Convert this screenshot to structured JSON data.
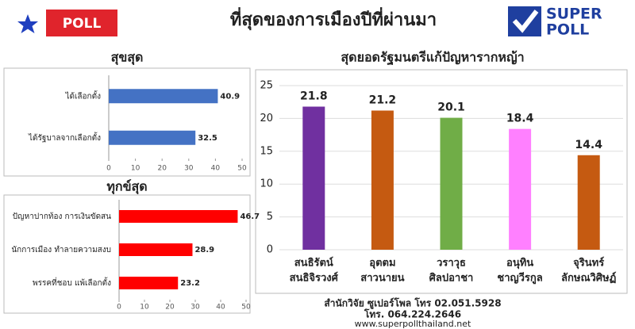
{
  "header": {
    "badge": "POLL",
    "title": "ที่สุดของการเมืองปีที่ผ่านมา",
    "logo_top": "SUPER",
    "logo_bottom": "POLL"
  },
  "chart_data": [
    {
      "type": "barh",
      "title": "สุขสุด",
      "categories": [
        "ได้เลือกตั้ง",
        "ได้รัฐบาลจากเลือกตั้ง"
      ],
      "values": [
        40.9,
        32.5
      ],
      "color": "#4472c4",
      "xlim": [
        0,
        50
      ],
      "xticks": [
        0,
        10,
        20,
        30,
        40,
        50
      ],
      "grid": false
    },
    {
      "type": "barh",
      "title": "ทุกข์สุด",
      "categories": [
        "ปัญหาปากท้อง การเงินขัดสน",
        "นักการเมือง ทำลายความสงบ",
        "พรรคที่ชอบ แพ้เลือกตั้ง"
      ],
      "values": [
        46.7,
        28.9,
        23.2
      ],
      "color": "#ff0000",
      "xlim": [
        0,
        50
      ],
      "xticks": [
        0,
        10,
        20,
        30,
        40,
        50
      ],
      "grid": false
    },
    {
      "type": "bar",
      "title": "สุดยอดรัฐมนตรีแก้ปัญหารากหญ้า",
      "categories": [
        [
          "สนธิรัตน์",
          "สนธิจิรวงศ์"
        ],
        [
          "อุตตม",
          "สาวนายน"
        ],
        [
          "วราวุธ",
          "ศิลปอาชา"
        ],
        [
          "อนุทิน",
          "ชาญวีรกูล"
        ],
        [
          "จุรินทร์",
          "ลักษณวิศิษฏ์"
        ]
      ],
      "values": [
        21.8,
        21.2,
        20.1,
        18.4,
        14.4
      ],
      "colors": [
        "#7030a0",
        "#c55a11",
        "#70ad47",
        "#ff80ff",
        "#c55a11"
      ],
      "ylim": [
        0,
        25
      ],
      "yticks": [
        0,
        5,
        10,
        15,
        20,
        25
      ],
      "grid": true
    }
  ],
  "footer": {
    "line1": "สำนักวิจัย ซูเปอร์โพล โทร 02.051.5928",
    "line2": "โทร. 064.224.2646",
    "line3": "www.superpollthailand.net"
  }
}
